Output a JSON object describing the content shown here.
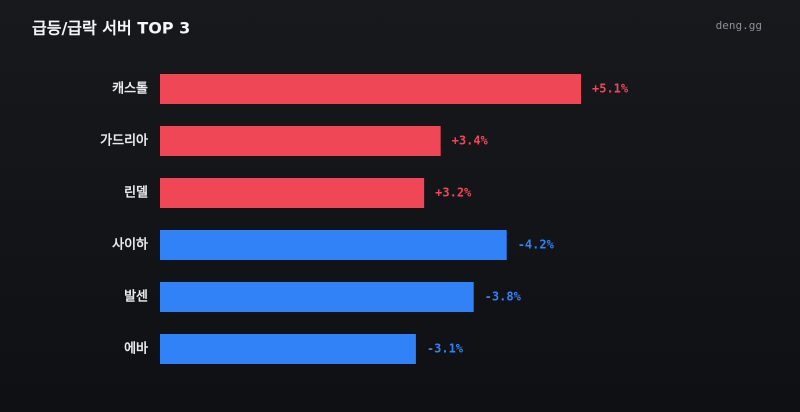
{
  "chart_data": {
    "type": "bar",
    "orientation": "horizontal",
    "title": "급등/급락 서버 TOP 3",
    "source": "deng.gg",
    "categories": [
      "캐스톨",
      "가드리아",
      "린델",
      "사이하",
      "발센",
      "에바"
    ],
    "values": [
      5.1,
      3.4,
      3.2,
      -4.2,
      -3.8,
      -3.1
    ],
    "value_labels": [
      "+5.1%",
      "+3.4%",
      "+3.2%",
      "-4.2%",
      "-3.8%",
      "-3.1%"
    ],
    "colors": [
      "#f04757",
      "#f04757",
      "#f04757",
      "#3182f6",
      "#3182f6",
      "#3182f6"
    ]
  }
}
